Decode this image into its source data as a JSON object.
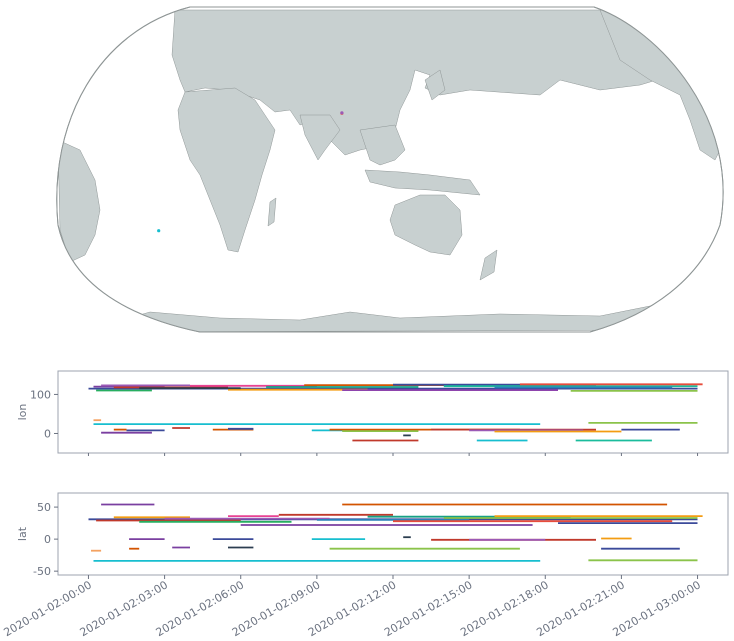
{
  "chart_data": [
    {
      "type": "map",
      "projection": "Robinson",
      "center_longitude": 150,
      "colors": {
        "land": "#c8d0d0",
        "coast": "#8f9696",
        "ocean": "#ffffff"
      },
      "points": [
        {
          "lon": 121.5,
          "lat": 31.2,
          "color": "#e74c3c"
        },
        {
          "lon": 121.5,
          "lat": 31.4,
          "color": "#9b59b6"
        },
        {
          "lon": 18.4,
          "lat": -33.9,
          "color": "#17becf"
        }
      ]
    },
    {
      "type": "gantt",
      "ylabel": "lon",
      "ylim": [
        -50,
        160
      ],
      "yticks": [
        0,
        100
      ],
      "xticks": [
        "2020-01-02:00:00",
        "2020-01-02:03:00",
        "2020-01-02:06:00",
        "2020-01-02:09:00",
        "2020-01-02:12:00",
        "2020-01-02:15:00",
        "2020-01-02:18:00",
        "2020-01-02:21:00",
        "2020-01-03:00:00"
      ],
      "xlim_hours": [
        -1.2,
        25.2
      ],
      "segments": [
        {
          "start": 0.0,
          "end": 24.0,
          "value": 115,
          "color": "#3b4a9a"
        },
        {
          "start": 0.2,
          "end": 3.0,
          "value": 120,
          "color": "#7a3fa0"
        },
        {
          "start": 0.5,
          "end": 4.0,
          "value": 123,
          "color": "#9b59b6"
        },
        {
          "start": 1.0,
          "end": 5.5,
          "value": 118,
          "color": "#c0392b"
        },
        {
          "start": 0.3,
          "end": 2.5,
          "value": 110,
          "color": "#27ae60"
        },
        {
          "start": 4.0,
          "end": 9.0,
          "value": 122,
          "color": "#e84393"
        },
        {
          "start": 5.5,
          "end": 11.0,
          "value": 112,
          "color": "#f39c12"
        },
        {
          "start": 8.5,
          "end": 16.0,
          "value": 124,
          "color": "#d35400"
        },
        {
          "start": 12.0,
          "end": 20.0,
          "value": 125,
          "color": "#3b4a9a"
        },
        {
          "start": 14.0,
          "end": 24.0,
          "value": 121,
          "color": "#1abc9c"
        },
        {
          "start": 17.0,
          "end": 24.2,
          "value": 126,
          "color": "#e74c3c"
        },
        {
          "start": 10.0,
          "end": 18.5,
          "value": 111,
          "color": "#8e44ad"
        },
        {
          "start": 16.0,
          "end": 23.0,
          "value": 118,
          "color": "#2980b9"
        },
        {
          "start": 7.0,
          "end": 13.0,
          "value": 119,
          "color": "#16a085"
        },
        {
          "start": 2.0,
          "end": 6.0,
          "value": 116,
          "color": "#2c3e50"
        },
        {
          "start": 19.0,
          "end": 24.0,
          "value": 109,
          "color": "#8bc34a"
        },
        {
          "start": 0.2,
          "end": 17.8,
          "value": 24,
          "color": "#17becf"
        },
        {
          "start": 19.7,
          "end": 24.0,
          "value": 27,
          "color": "#8bc34a"
        },
        {
          "start": 0.2,
          "end": 0.5,
          "value": 34,
          "color": "#f4a261"
        },
        {
          "start": 1.0,
          "end": 1.5,
          "value": 10,
          "color": "#d35400"
        },
        {
          "start": 1.5,
          "end": 3.0,
          "value": 8,
          "color": "#3b4a9a"
        },
        {
          "start": 0.5,
          "end": 2.5,
          "value": 2,
          "color": "#7a3fa0"
        },
        {
          "start": 3.3,
          "end": 4.0,
          "value": 14,
          "color": "#c0392b"
        },
        {
          "start": 4.9,
          "end": 6.5,
          "value": 10,
          "color": "#d35400"
        },
        {
          "start": 5.5,
          "end": 6.5,
          "value": 12,
          "color": "#3b4a9a"
        },
        {
          "start": 8.8,
          "end": 10.5,
          "value": 8,
          "color": "#17becf"
        },
        {
          "start": 9.5,
          "end": 17.0,
          "value": 10,
          "color": "#d35400"
        },
        {
          "start": 10.0,
          "end": 13.0,
          "value": 6,
          "color": "#8bc34a"
        },
        {
          "start": 13.5,
          "end": 20.0,
          "value": 10,
          "color": "#c0392b"
        },
        {
          "start": 15.0,
          "end": 19.5,
          "value": 8,
          "color": "#9b59b6"
        },
        {
          "start": 16.0,
          "end": 21.0,
          "value": 5,
          "color": "#f39c12"
        },
        {
          "start": 21.0,
          "end": 23.3,
          "value": 10,
          "color": "#3b4a9a"
        },
        {
          "start": 10.4,
          "end": 13.0,
          "value": -18,
          "color": "#c0392b"
        },
        {
          "start": 12.4,
          "end": 12.7,
          "value": -5,
          "color": "#2c3e50"
        },
        {
          "start": 15.3,
          "end": 17.3,
          "value": -18,
          "color": "#17becf"
        },
        {
          "start": 19.2,
          "end": 22.2,
          "value": -18,
          "color": "#1abc9c"
        }
      ]
    },
    {
      "type": "gantt",
      "ylabel": "lat",
      "ylim": [
        -56,
        72
      ],
      "yticks": [
        -50,
        0,
        50
      ],
      "xticks": [
        "2020-01-02:00:00",
        "2020-01-02:03:00",
        "2020-01-02:06:00",
        "2020-01-02:09:00",
        "2020-01-02:12:00",
        "2020-01-02:15:00",
        "2020-01-02:18:00",
        "2020-01-02:21:00",
        "2020-01-03:00:00"
      ],
      "xlim_hours": [
        -1.2,
        25.2
      ],
      "segments": [
        {
          "start": 0.5,
          "end": 2.6,
          "value": 54,
          "color": "#7a3fa0"
        },
        {
          "start": 10.0,
          "end": 22.8,
          "value": 54,
          "color": "#d35400"
        },
        {
          "start": 0.0,
          "end": 24.0,
          "value": 31,
          "color": "#3b4a9a"
        },
        {
          "start": 0.3,
          "end": 6.0,
          "value": 29,
          "color": "#c0392b"
        },
        {
          "start": 1.0,
          "end": 4.0,
          "value": 34,
          "color": "#f39c12"
        },
        {
          "start": 2.0,
          "end": 8.0,
          "value": 27,
          "color": "#27ae60"
        },
        {
          "start": 3.0,
          "end": 9.5,
          "value": 32,
          "color": "#9b59b6"
        },
        {
          "start": 5.5,
          "end": 7.5,
          "value": 36,
          "color": "#e84393"
        },
        {
          "start": 7.5,
          "end": 12.0,
          "value": 38,
          "color": "#c0392b"
        },
        {
          "start": 9.0,
          "end": 15.0,
          "value": 30,
          "color": "#2980b9"
        },
        {
          "start": 11.0,
          "end": 19.0,
          "value": 35,
          "color": "#16a085"
        },
        {
          "start": 12.0,
          "end": 23.0,
          "value": 28,
          "color": "#e74c3c"
        },
        {
          "start": 14.0,
          "end": 24.0,
          "value": 33,
          "color": "#8bc34a"
        },
        {
          "start": 16.0,
          "end": 24.2,
          "value": 36,
          "color": "#f39c12"
        },
        {
          "start": 18.5,
          "end": 24.0,
          "value": 25,
          "color": "#3b4a9a"
        },
        {
          "start": 6.0,
          "end": 17.5,
          "value": 22,
          "color": "#7a3fa0"
        },
        {
          "start": 0.1,
          "end": 0.5,
          "value": -18,
          "color": "#f4a261"
        },
        {
          "start": 1.6,
          "end": 3.0,
          "value": 0,
          "color": "#7a3fa0"
        },
        {
          "start": 1.6,
          "end": 2.0,
          "value": -15,
          "color": "#d35400"
        },
        {
          "start": 3.3,
          "end": 4.0,
          "value": -13,
          "color": "#7a3fa0"
        },
        {
          "start": 4.9,
          "end": 6.5,
          "value": 0,
          "color": "#3b4a9a"
        },
        {
          "start": 5.5,
          "end": 6.5,
          "value": -13,
          "color": "#2c3e50"
        },
        {
          "start": 8.8,
          "end": 10.9,
          "value": 0,
          "color": "#17becf"
        },
        {
          "start": 9.5,
          "end": 17.0,
          "value": -15,
          "color": "#8bc34a"
        },
        {
          "start": 12.4,
          "end": 12.7,
          "value": 3,
          "color": "#2c3e50"
        },
        {
          "start": 13.5,
          "end": 20.0,
          "value": -1,
          "color": "#c0392b"
        },
        {
          "start": 15.0,
          "end": 18.0,
          "value": -1,
          "color": "#9b59b6"
        },
        {
          "start": 0.2,
          "end": 17.8,
          "value": -34,
          "color": "#17becf"
        },
        {
          "start": 19.7,
          "end": 24.0,
          "value": -33,
          "color": "#8bc34a"
        },
        {
          "start": 20.2,
          "end": 23.3,
          "value": -15,
          "color": "#3b4a9a"
        },
        {
          "start": 20.2,
          "end": 21.4,
          "value": 1,
          "color": "#f39c12"
        }
      ]
    }
  ]
}
